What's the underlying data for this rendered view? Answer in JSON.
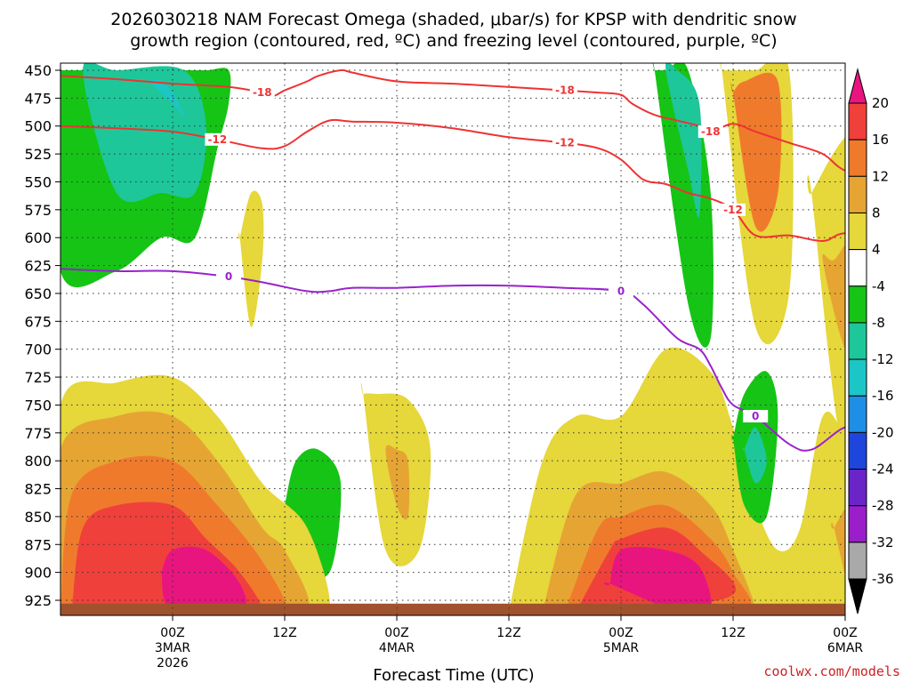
{
  "chart_data": {
    "type": "heatmap",
    "title_line1": "2026030218 NAM Forecast Omega (shaded, μbar/s) for KPSP with dendritic snow",
    "title_line2": "growth region (contoured, red, ºC) and freezing level (contoured, purple, ºC)",
    "xlabel": "Forecast Time (UTC)",
    "ylabel": "",
    "credit": "coolwx.com/models",
    "y_ticks": [
      "450",
      "475",
      "500",
      "525",
      "550",
      "575",
      "600",
      "625",
      "650",
      "675",
      "700",
      "725",
      "750",
      "775",
      "800",
      "825",
      "850",
      "875",
      "900",
      "925"
    ],
    "y_range_mb": [
      450,
      935
    ],
    "x_range_hours": [
      -10,
      60
    ],
    "x_ticks": [
      {
        "hour": 0,
        "l1": "00Z",
        "l2": "3MAR",
        "l3": "2026"
      },
      {
        "hour": 10,
        "l1": "12Z",
        "l2": "",
        "l3": ""
      },
      {
        "hour": 20,
        "l1": "00Z",
        "l2": "4MAR",
        "l3": ""
      },
      {
        "hour": 30,
        "l1": "12Z",
        "l2": "",
        "l3": ""
      },
      {
        "hour": 40,
        "l1": "00Z",
        "l2": "5MAR",
        "l3": ""
      },
      {
        "hour": 50,
        "l1": "12Z",
        "l2": "",
        "l3": ""
      },
      {
        "hour": 60,
        "l1": "00Z",
        "l2": "6MAR",
        "l3": ""
      }
    ],
    "colorbar": {
      "labels": [
        "20",
        "16",
        "12",
        "8",
        "4",
        "-4",
        "-8",
        "-12",
        "-16",
        "-20",
        "-24",
        "-28",
        "-32",
        "-36"
      ],
      "colors": [
        "#e8157f",
        "#f0403c",
        "#f07a2c",
        "#e6a533",
        "#e6d73a",
        "#ffffff",
        "#16c416",
        "#1dc79a",
        "#1cc6c6",
        "#1e8fe6",
        "#1e46dc",
        "#6a24c8",
        "#9b1ecb",
        "#a9a9a9",
        "#000000"
      ]
    },
    "omega_regions": [
      {
        "level": "-8",
        "color": "#16c416",
        "hours": [
          -10,
          -10,
          -5,
          -1,
          2,
          4,
          5,
          5,
          3,
          0,
          -5,
          -10
        ],
        "mb": [
          450,
          630,
          630,
          600,
          600,
          520,
          480,
          450,
          450,
          450,
          450,
          450
        ]
      },
      {
        "level": "-12",
        "color": "#1dc79a",
        "hours": [
          -8,
          -5,
          -1,
          2,
          3,
          1,
          -5
        ],
        "mb": [
          450,
          560,
          560,
          560,
          500,
          450,
          450
        ]
      },
      {
        "level": "-16",
        "color": "#1cc6c6",
        "hours": [
          -2,
          0,
          1,
          0,
          -1
        ],
        "mb": [
          460,
          480,
          490,
          470,
          460
        ]
      },
      {
        "level": "-8",
        "color": "#16c416",
        "hours": [
          43,
          46,
          48,
          48,
          46,
          44,
          43
        ],
        "mb": [
          450,
          660,
          690,
          560,
          450,
          450,
          450
        ]
      },
      {
        "level": "-12",
        "color": "#1dc79a",
        "hours": [
          44,
          46,
          47,
          47,
          45
        ],
        "mb": [
          450,
          540,
          580,
          480,
          450
        ]
      },
      {
        "level": "4",
        "color": "#e6d73a",
        "hours": [
          49,
          52,
          55,
          55,
          52,
          50,
          49
        ],
        "mb": [
          450,
          680,
          650,
          450,
          450,
          450,
          450
        ]
      },
      {
        "level": "12",
        "color": "#f07a2c",
        "hours": [
          50,
          52,
          54,
          54,
          51,
          50
        ],
        "mb": [
          470,
          590,
          560,
          460,
          460,
          470
        ]
      },
      {
        "level": "4",
        "color": "#e6d73a",
        "hours": [
          57,
          60,
          63,
          63,
          60,
          57
        ],
        "mb": [
          560,
          800,
          700,
          500,
          510,
          560
        ]
      },
      {
        "level": "8",
        "color": "#e6a533",
        "hours": [
          58,
          60,
          61,
          61,
          59
        ],
        "mb": [
          620,
          700,
          680,
          600,
          620
        ]
      },
      {
        "level": "4",
        "color": "#e6d73a",
        "hours": [
          6,
          7,
          8,
          8,
          7,
          6
        ],
        "mb": [
          600,
          680,
          620,
          570,
          560,
          600
        ]
      },
      {
        "level": "-8",
        "color": "#16c416",
        "hours": [
          10,
          11,
          14,
          15,
          13,
          11,
          10
        ],
        "mb": [
          840,
          890,
          900,
          820,
          790,
          800,
          840
        ]
      },
      {
        "level": "4",
        "color": "#e6d73a",
        "hours": [
          17,
          19,
          22,
          23,
          21,
          18,
          17
        ],
        "mb": [
          740,
          880,
          880,
          790,
          745,
          740,
          740
        ]
      },
      {
        "level": "8",
        "color": "#e6a533",
        "hours": [
          19,
          20,
          21,
          21,
          20
        ],
        "mb": [
          790,
          840,
          850,
          800,
          790
        ]
      },
      {
        "level": "4",
        "color": "#e6d73a",
        "hours": [
          -10,
          -10,
          -5,
          0,
          4,
          8,
          12,
          14,
          10,
          5,
          0,
          -5
        ],
        "mb": [
          935,
          750,
          730,
          725,
          760,
          820,
          860,
          935,
          935,
          935,
          935,
          935
        ]
      },
      {
        "level": "8",
        "color": "#e6a533",
        "hours": [
          -10,
          -10,
          -5,
          0,
          4,
          8,
          10,
          12,
          5,
          0,
          -10
        ],
        "mb": [
          935,
          790,
          760,
          760,
          800,
          860,
          880,
          935,
          935,
          935,
          935
        ]
      },
      {
        "level": "12",
        "color": "#f07a2c",
        "hours": [
          -10,
          -9,
          -5,
          0,
          4,
          8,
          10,
          5,
          0,
          -10
        ],
        "mb": [
          935,
          830,
          800,
          800,
          840,
          890,
          935,
          935,
          935,
          935
        ]
      },
      {
        "level": "16",
        "color": "#f0403c",
        "hours": [
          -9,
          -8,
          -5,
          0,
          3,
          6,
          8,
          5,
          0,
          -9
        ],
        "mb": [
          935,
          860,
          840,
          840,
          870,
          900,
          935,
          935,
          935,
          935
        ]
      },
      {
        "level": "20",
        "color": "#e8157f",
        "hours": [
          -1,
          0,
          3,
          6,
          6,
          0,
          -1
        ],
        "mb": [
          900,
          880,
          880,
          910,
          935,
          935,
          900
        ]
      },
      {
        "level": "4",
        "color": "#e6d73a",
        "hours": [
          30,
          33,
          36,
          40,
          44,
          48,
          50,
          52,
          54,
          56,
          58,
          60,
          62,
          64,
          64,
          30
        ],
        "mb": [
          935,
          800,
          760,
          760,
          700,
          720,
          770,
          840,
          880,
          860,
          760,
          780,
          830,
          880,
          935,
          935
        ]
      },
      {
        "level": "8",
        "color": "#e6a533",
        "hours": [
          33,
          36,
          40,
          44,
          48,
          50,
          52,
          50,
          40,
          33
        ],
        "mb": [
          935,
          830,
          820,
          810,
          840,
          880,
          935,
          935,
          935,
          935
        ]
      },
      {
        "level": "12",
        "color": "#f07a2c",
        "hours": [
          35,
          38,
          40,
          44,
          48,
          50,
          51,
          40,
          35
        ],
        "mb": [
          935,
          860,
          850,
          840,
          870,
          900,
          935,
          935,
          935
        ]
      },
      {
        "level": "16",
        "color": "#f0403c",
        "hours": [
          36,
          39,
          40,
          44,
          47,
          50,
          40,
          36
        ],
        "mb": [
          935,
          880,
          870,
          860,
          880,
          920,
          935,
          935
        ]
      },
      {
        "level": "20",
        "color": "#e8157f",
        "hours": [
          39,
          40,
          44,
          47,
          48,
          45,
          39
        ],
        "mb": [
          910,
          880,
          880,
          895,
          935,
          935,
          910
        ]
      },
      {
        "level": "-8",
        "color": "#16c416",
        "hours": [
          50,
          51,
          53,
          54,
          53,
          51,
          50
        ],
        "mb": [
          780,
          840,
          850,
          760,
          720,
          740,
          780
        ]
      },
      {
        "level": "-12",
        "color": "#1dc79a",
        "hours": [
          51,
          52,
          53,
          52,
          51
        ],
        "mb": [
          790,
          820,
          800,
          770,
          790
        ]
      },
      {
        "level": "4",
        "color": "#e6d73a",
        "hours": [
          58,
          60,
          62,
          64,
          64,
          62,
          60,
          58
        ],
        "mb": [
          830,
          790,
          780,
          820,
          935,
          935,
          910,
          830
        ]
      },
      {
        "level": "8",
        "color": "#e6a533",
        "hours": [
          59,
          61,
          63,
          63,
          61,
          59
        ],
        "mb": [
          860,
          830,
          840,
          935,
          935,
          860
        ]
      }
    ],
    "contours": [
      {
        "name": "-18",
        "color": "#ee3333",
        "label_text": "-18",
        "hours": [
          -10,
          -5,
          0,
          5,
          8,
          9,
          10,
          12,
          13,
          15,
          16,
          20,
          25,
          30,
          35,
          38,
          40,
          41,
          43,
          45,
          47,
          48,
          50,
          52,
          55,
          58,
          60,
          64
        ],
        "mb": [
          455,
          458,
          462,
          465,
          470,
          473,
          468,
          460,
          455,
          450,
          452,
          460,
          462,
          465,
          468,
          470,
          472,
          480,
          490,
          495,
          500,
          505,
          498,
          505,
          515,
          525,
          540,
          552
        ]
      },
      {
        "name": "-12",
        "color": "#ee3333",
        "label_text": "-12",
        "hours": [
          -10,
          -5,
          0,
          4,
          8,
          10,
          12,
          14,
          16,
          20,
          25,
          30,
          35,
          38,
          40,
          42,
          44,
          46,
          48,
          50,
          52,
          55,
          58,
          60,
          64
        ],
        "mb": [
          500,
          502,
          505,
          512,
          520,
          518,
          505,
          495,
          496,
          497,
          502,
          510,
          515,
          520,
          530,
          548,
          552,
          560,
          565,
          575,
          598,
          598,
          603,
          596,
          600
        ]
      },
      {
        "name": "0",
        "color": "#9922cc",
        "label_text": "0",
        "hours": [
          -10,
          -5,
          0,
          5,
          8,
          12,
          14,
          16,
          20,
          25,
          30,
          35,
          40,
          42,
          45,
          47,
          48,
          49,
          50,
          52,
          55,
          57,
          60,
          62,
          64
        ],
        "mb": [
          628,
          630,
          630,
          635,
          640,
          648,
          648,
          645,
          645,
          643,
          643,
          645,
          648,
          660,
          690,
          700,
          715,
          735,
          750,
          760,
          785,
          790,
          770,
          775,
          780
        ]
      }
    ],
    "surface_band": {
      "color": "#a0522d",
      "mb_top": 928,
      "mb_bottom": 935
    }
  }
}
